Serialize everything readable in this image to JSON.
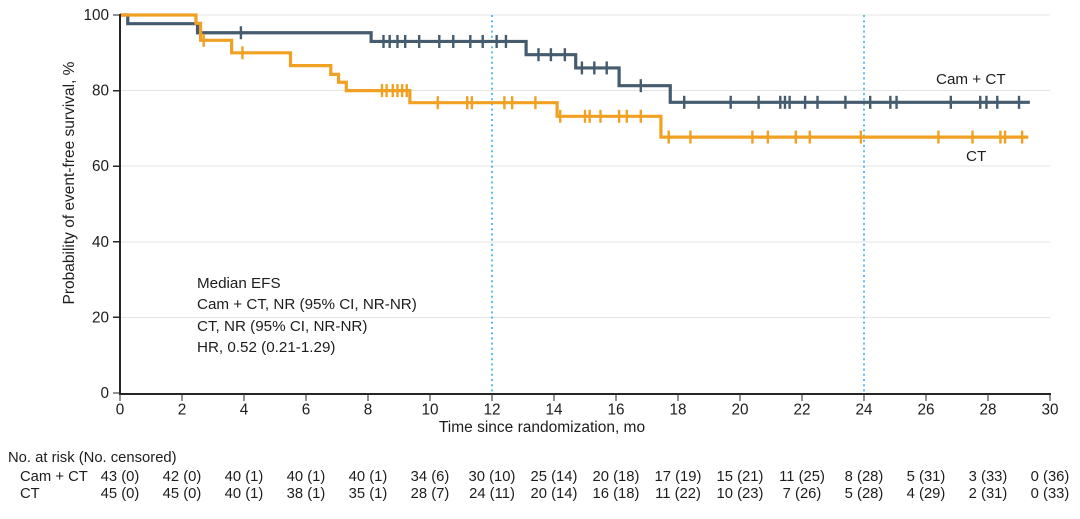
{
  "axes": {
    "x_title": "Time since randomization, mo",
    "y_title": "Probability of event-free survival, %"
  },
  "annotation": {
    "lines": [
      "Median EFS",
      "Cam + CT, NR (95% CI, NR-NR)",
      "CT, NR (95% CI, NR-NR)",
      "HR, 0.52 (0.21-1.29)"
    ]
  },
  "curve_labels": {
    "camct": "Cam + CT",
    "ct": "CT"
  },
  "colors": {
    "camct": "#455b6e",
    "ct": "#f0a124",
    "reference_line": "#3fb3e8",
    "grid": "#e4e4e4",
    "axis": "#262626",
    "text": "#1d1d1d"
  },
  "chart_data": {
    "type": "line",
    "subtype": "kaplan-meier-step",
    "title": "",
    "xlabel": "Time since randomization, mo",
    "ylabel": "Probability of event-free survival, %",
    "xlim": [
      0,
      30
    ],
    "ylim": [
      0,
      100
    ],
    "xticks": [
      0,
      2,
      4,
      6,
      8,
      10,
      12,
      14,
      16,
      18,
      20,
      22,
      24,
      26,
      28,
      30
    ],
    "yticks": [
      0,
      20,
      40,
      60,
      80,
      100
    ],
    "grid": "horizontal",
    "legend_position": "inline-right",
    "reference_lines_x": [
      12,
      24
    ],
    "series": [
      {
        "name": "Cam + CT",
        "color": "#455b6e",
        "steps": [
          [
            0,
            100
          ],
          [
            0.25,
            97.7
          ],
          [
            2.5,
            95.3
          ],
          [
            8.1,
            93
          ],
          [
            13.1,
            89.5
          ],
          [
            14.7,
            86
          ],
          [
            16.1,
            81.3
          ],
          [
            17.75,
            76.9
          ]
        ],
        "end_time": 29.35,
        "censor_times": [
          3.9,
          8.5,
          8.7,
          8.95,
          9.2,
          9.65,
          10.3,
          10.75,
          11.3,
          11.7,
          12.15,
          12.45,
          13.5,
          13.9,
          14.35,
          14.9,
          15.3,
          15.7,
          16.8,
          18.2,
          19.7,
          20.6,
          21.3,
          21.45,
          21.6,
          22.1,
          22.5,
          23.4,
          24.2,
          24.85,
          25.05,
          26.8,
          27.75,
          27.95,
          28.3,
          29.0
        ]
      },
      {
        "name": "CT",
        "color": "#f0a124",
        "steps": [
          [
            0,
            100
          ],
          [
            2.45,
            97.8
          ],
          [
            2.6,
            93.3
          ],
          [
            3.6,
            90
          ],
          [
            5.5,
            86.6
          ],
          [
            6.8,
            84.3
          ],
          [
            7.05,
            82.2
          ],
          [
            7.3,
            80
          ],
          [
            9.35,
            76.8
          ],
          [
            14.1,
            73.2
          ],
          [
            17.45,
            67.7
          ]
        ],
        "end_time": 29.3,
        "censor_times": [
          2.7,
          3.95,
          8.45,
          8.6,
          8.8,
          8.95,
          9.1,
          9.25,
          10.25,
          11.2,
          11.35,
          12.4,
          12.65,
          13.4,
          14.2,
          15.0,
          15.15,
          15.5,
          16.1,
          16.35,
          16.8,
          17.7,
          18.4,
          20.4,
          20.9,
          21.8,
          22.25,
          23.9,
          26.4,
          27.5,
          28.4,
          28.55,
          29.1
        ]
      }
    ],
    "annotation_lines": [
      "Median EFS",
      "Cam + CT, NR (95% CI, NR-NR)",
      "CT, NR (95% CI, NR-NR)",
      "HR, 0.52 (0.21-1.29)"
    ]
  },
  "risk_table": {
    "header": "No. at risk (No. censored)",
    "time_points": [
      0,
      2,
      4,
      6,
      8,
      10,
      12,
      14,
      16,
      18,
      20,
      22,
      24,
      26,
      28,
      30
    ],
    "rows": [
      {
        "label": "Cam + CT",
        "values": [
          "43 (0)",
          "42 (0)",
          "40 (1)",
          "40 (1)",
          "40 (1)",
          "34 (6)",
          "30 (10)",
          "25 (14)",
          "20 (18)",
          "17 (19)",
          "15 (21)",
          "11 (25)",
          "8 (28)",
          "5 (31)",
          "3 (33)",
          "0 (36)"
        ]
      },
      {
        "label": "CT",
        "values": [
          "45 (0)",
          "45 (0)",
          "40 (1)",
          "38 (1)",
          "35 (1)",
          "28 (7)",
          "24 (11)",
          "20 (14)",
          "16 (18)",
          "11 (22)",
          "10 (23)",
          "7 (26)",
          "5 (28)",
          "4 (29)",
          "2 (31)",
          "0 (33)"
        ]
      }
    ]
  }
}
